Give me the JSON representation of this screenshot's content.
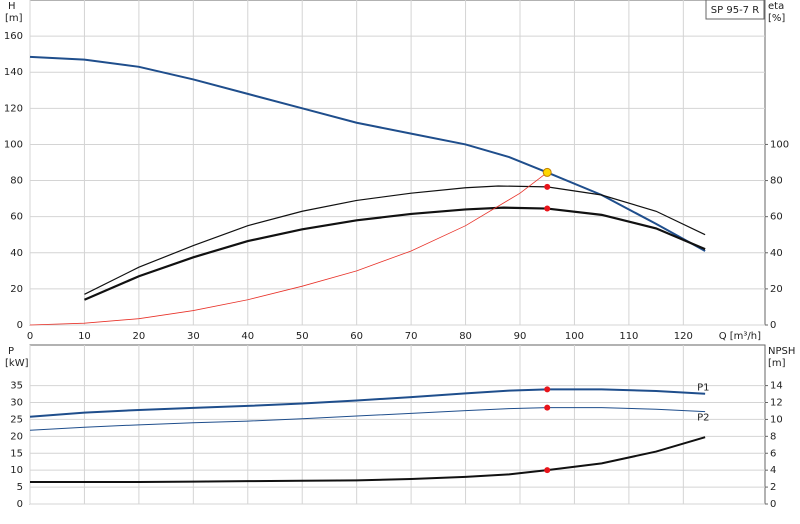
{
  "chart_data": [
    {
      "type": "line",
      "label": "SP 95-7 R",
      "y_title": "H",
      "y_unit": "[m]",
      "y2_title": "eta",
      "y2_unit": "[%]",
      "x_title": "Q [m³/h]",
      "xlim": [
        0,
        135
      ],
      "xticks": [
        0,
        10,
        20,
        30,
        40,
        50,
        60,
        70,
        80,
        90,
        100,
        110,
        120
      ],
      "ylim": [
        0,
        180
      ],
      "yticks": [
        0,
        20,
        40,
        60,
        80,
        100,
        120,
        140,
        160
      ],
      "y2lim": [
        0,
        180
      ],
      "y2ticks": [
        0,
        20,
        40,
        60,
        80,
        100
      ],
      "grid": true,
      "show_xtick_labels": true,
      "series": [
        {
          "color": "#1f4e8c",
          "width": 2,
          "axis": "y",
          "x": [
            0,
            10,
            20,
            30,
            40,
            50,
            60,
            70,
            80,
            88,
            95,
            105,
            115,
            124
          ],
          "values": [
            148.5,
            147,
            143,
            136,
            128,
            120,
            112,
            106,
            100,
            93,
            84.5,
            72,
            56,
            41
          ]
        },
        {
          "color": "#111111",
          "width": 1.2,
          "axis": "y2",
          "x": [
            10,
            20,
            30,
            40,
            50,
            60,
            70,
            80,
            86,
            95,
            105,
            115,
            124
          ],
          "values": [
            17,
            32,
            44,
            55,
            63,
            69,
            73,
            76,
            77,
            76.5,
            72,
            63,
            50
          ]
        },
        {
          "color": "#111111",
          "width": 2.2,
          "axis": "y2",
          "x": [
            10,
            20,
            30,
            40,
            50,
            60,
            70,
            80,
            87,
            95,
            105,
            115,
            124
          ],
          "values": [
            14,
            27,
            37.5,
            46.5,
            53,
            58,
            61.5,
            64,
            65,
            64.5,
            61,
            53.5,
            42
          ]
        },
        {
          "color": "#e8332a",
          "width": 0.8,
          "axis": "y",
          "x": [
            0,
            10,
            20,
            30,
            40,
            50,
            60,
            70,
            80,
            90,
            95
          ],
          "values": [
            0,
            1,
            3.5,
            8,
            14,
            21.5,
            30,
            41,
            55,
            73,
            84.5
          ]
        },
        {
          "color": "#ffd700",
          "marker": true,
          "axis": "y",
          "x": [
            95
          ],
          "values": [
            84.5
          ]
        },
        {
          "color": "#e8141a",
          "marker": true,
          "axis": "y2",
          "x": [
            95,
            95
          ],
          "values": [
            76.5,
            64.5
          ]
        }
      ]
    },
    {
      "type": "line",
      "y_title": "P",
      "y_unit": "[kW]",
      "y2_title": "NPSH",
      "y2_unit": "[m]",
      "xlim": [
        0,
        135
      ],
      "xticks": [
        0,
        10,
        20,
        30,
        40,
        50,
        60,
        70,
        80,
        90,
        100,
        110,
        120
      ],
      "ylim": [
        0,
        47
      ],
      "yticks": [
        0,
        5,
        10,
        15,
        20,
        25,
        30,
        35
      ],
      "y2lim": [
        0,
        18.8
      ],
      "y2ticks": [
        0,
        2,
        4,
        6,
        8,
        10,
        12,
        14
      ],
      "grid": true,
      "show_xtick_labels": false,
      "series": [
        {
          "name": "P1",
          "color": "#1f4e8c",
          "width": 2,
          "axis": "y",
          "x": [
            0,
            10,
            20,
            30,
            40,
            50,
            60,
            70,
            80,
            88,
            95,
            105,
            115,
            124
          ],
          "values": [
            25.8,
            27,
            27.8,
            28.4,
            29,
            29.7,
            30.6,
            31.6,
            32.7,
            33.5,
            33.9,
            33.9,
            33.4,
            32.6
          ]
        },
        {
          "name": "P2",
          "color": "#1f4e8c",
          "width": 1,
          "axis": "y",
          "x": [
            0,
            10,
            20,
            30,
            40,
            50,
            60,
            70,
            80,
            88,
            95,
            105,
            115,
            124
          ],
          "values": [
            21.8,
            22.7,
            23.4,
            24,
            24.5,
            25.2,
            26,
            26.8,
            27.6,
            28.2,
            28.5,
            28.5,
            28,
            27.3
          ]
        },
        {
          "color": "#111111",
          "width": 2,
          "axis": "y2",
          "x": [
            0,
            10,
            20,
            30,
            40,
            50,
            60,
            70,
            80,
            88,
            95,
            105,
            115,
            124
          ],
          "values": [
            2.6,
            2.6,
            2.6,
            2.65,
            2.7,
            2.75,
            2.8,
            2.95,
            3.2,
            3.5,
            4,
            4.8,
            6.2,
            7.9
          ]
        },
        {
          "color": "#e8141a",
          "marker": true,
          "axis": "y",
          "x": [
            95,
            95
          ],
          "values": [
            33.9,
            28.5
          ]
        },
        {
          "color": "#e8141a",
          "marker": true,
          "axis": "y2",
          "x": [
            95
          ],
          "values": [
            4
          ]
        }
      ]
    }
  ]
}
